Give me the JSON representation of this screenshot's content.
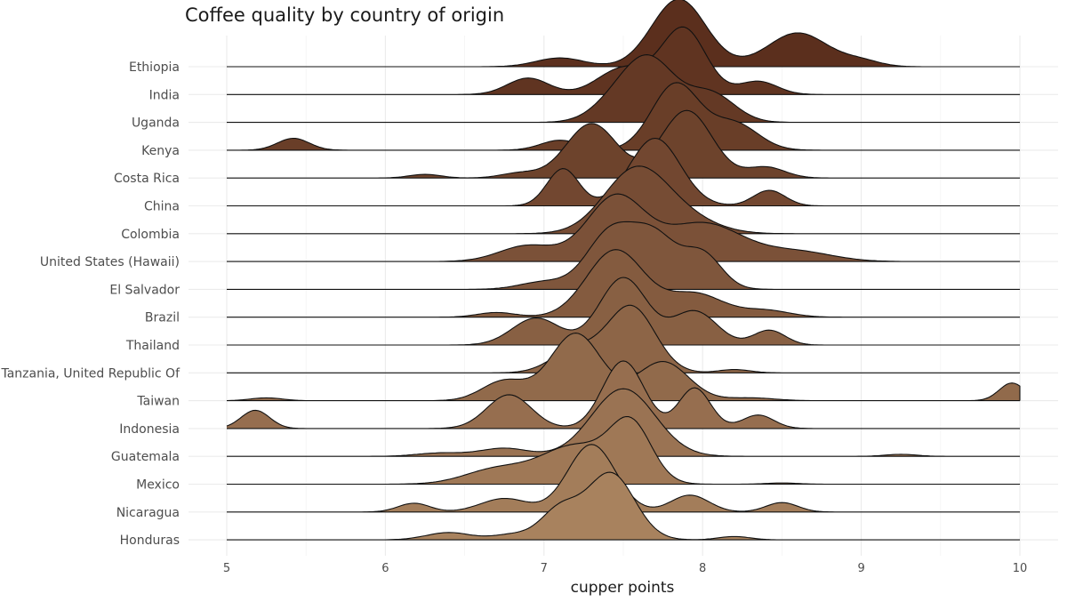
{
  "chart_data": {
    "type": "ridgeline",
    "title": "Coffee quality by country of origin",
    "xlabel": "cupper points",
    "ylabel": "",
    "xlim": [
      5,
      10
    ],
    "xticks": [
      5,
      6,
      7,
      8,
      9,
      10
    ],
    "grid": true,
    "legend": "none",
    "fill_top_color": "#5b2f1d",
    "fill_bottom_color": "#a8825e",
    "series": [
      {
        "name": "Ethiopia",
        "peaks": [
          [
            7.1,
            0.13,
            0.15
          ],
          [
            7.85,
            1.0,
            0.17
          ],
          [
            8.6,
            0.5,
            0.19
          ],
          [
            9.0,
            0.08,
            0.12
          ]
        ]
      },
      {
        "name": "India",
        "peaks": [
          [
            6.9,
            0.25,
            0.13
          ],
          [
            7.5,
            0.4,
            0.16
          ],
          [
            7.88,
            1.0,
            0.14
          ],
          [
            8.35,
            0.2,
            0.12
          ]
        ]
      },
      {
        "name": "Uganda",
        "peaks": [
          [
            7.45,
            0.3,
            0.15
          ],
          [
            7.67,
            1.0,
            0.16
          ],
          [
            8.05,
            0.48,
            0.15
          ]
        ]
      },
      {
        "name": "Kenya",
        "peaks": [
          [
            5.42,
            0.18,
            0.1
          ],
          [
            7.1,
            0.15,
            0.12
          ],
          [
            7.83,
            1.0,
            0.15
          ],
          [
            8.2,
            0.4,
            0.15
          ]
        ]
      },
      {
        "name": "Costa Rica",
        "peaks": [
          [
            6.25,
            0.05,
            0.1
          ],
          [
            6.85,
            0.07,
            0.12
          ],
          [
            7.3,
            0.75,
            0.16
          ],
          [
            7.9,
            0.93,
            0.16
          ],
          [
            8.4,
            0.15,
            0.12
          ]
        ]
      },
      {
        "name": "China",
        "peaks": [
          [
            7.12,
            0.55,
            0.1
          ],
          [
            7.7,
            1.0,
            0.16
          ],
          [
            8.42,
            0.23,
            0.1
          ]
        ]
      },
      {
        "name": "Colombia",
        "peaks": [
          [
            7.58,
            1.0,
            0.2
          ],
          [
            7.9,
            0.2,
            0.2
          ]
        ]
      },
      {
        "name": "United States (Hawaii)",
        "peaks": [
          [
            6.9,
            0.25,
            0.18
          ],
          [
            7.45,
            1.0,
            0.18
          ],
          [
            8.0,
            0.6,
            0.25
          ],
          [
            8.6,
            0.15,
            0.22
          ]
        ]
      },
      {
        "name": "El Salvador",
        "peaks": [
          [
            7.0,
            0.12,
            0.15
          ],
          [
            7.42,
            0.9,
            0.15
          ],
          [
            7.7,
            0.8,
            0.14
          ],
          [
            8.0,
            0.55,
            0.12
          ]
        ]
      },
      {
        "name": "Brazil",
        "peaks": [
          [
            6.7,
            0.07,
            0.12
          ],
          [
            7.45,
            1.0,
            0.18
          ],
          [
            7.95,
            0.35,
            0.18
          ],
          [
            8.4,
            0.1,
            0.15
          ]
        ]
      },
      {
        "name": "Thailand",
        "peaks": [
          [
            6.95,
            0.4,
            0.15
          ],
          [
            7.5,
            1.0,
            0.15
          ],
          [
            7.95,
            0.5,
            0.14
          ],
          [
            8.42,
            0.22,
            0.1
          ]
        ]
      },
      {
        "name": "Tanzania, United Republic Of",
        "peaks": [
          [
            7.2,
            0.35,
            0.15
          ],
          [
            7.55,
            1.0,
            0.15
          ],
          [
            8.2,
            0.05,
            0.1
          ]
        ]
      },
      {
        "name": "Taiwan",
        "peaks": [
          [
            5.25,
            0.04,
            0.1
          ],
          [
            6.75,
            0.28,
            0.14
          ],
          [
            7.2,
            0.95,
            0.16
          ],
          [
            7.75,
            0.55,
            0.16
          ],
          [
            8.3,
            0.04,
            0.15
          ],
          [
            9.95,
            0.25,
            0.08
          ]
        ]
      },
      {
        "name": "Indonesia",
        "peaks": [
          [
            5.18,
            0.27,
            0.09
          ],
          [
            6.78,
            0.5,
            0.14
          ],
          [
            7.5,
            1.0,
            0.13
          ],
          [
            7.95,
            0.6,
            0.1
          ],
          [
            8.35,
            0.2,
            0.1
          ]
        ]
      },
      {
        "name": "Guatemala",
        "peaks": [
          [
            6.35,
            0.05,
            0.15
          ],
          [
            6.75,
            0.12,
            0.15
          ],
          [
            7.5,
            1.0,
            0.2
          ],
          [
            9.25,
            0.03,
            0.1
          ]
        ]
      },
      {
        "name": "Mexico",
        "peaks": [
          [
            6.7,
            0.25,
            0.2
          ],
          [
            7.2,
            0.65,
            0.22
          ],
          [
            7.55,
            0.95,
            0.13
          ],
          [
            8.5,
            0.02,
            0.1
          ]
        ]
      },
      {
        "name": "Nicaragua",
        "peaks": [
          [
            6.18,
            0.13,
            0.1
          ],
          [
            6.75,
            0.2,
            0.15
          ],
          [
            7.3,
            1.0,
            0.15
          ],
          [
            7.92,
            0.25,
            0.12
          ],
          [
            8.5,
            0.14,
            0.1
          ]
        ]
      },
      {
        "name": "Honduras",
        "peaks": [
          [
            6.4,
            0.11,
            0.14
          ],
          [
            6.8,
            0.08,
            0.12
          ],
          [
            7.1,
            0.45,
            0.12
          ],
          [
            7.42,
            1.0,
            0.15
          ],
          [
            8.2,
            0.05,
            0.1
          ]
        ]
      }
    ]
  }
}
